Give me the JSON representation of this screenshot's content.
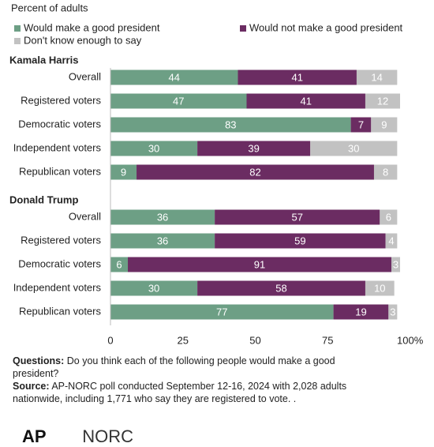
{
  "chart_data": [
    {
      "type": "bar",
      "orientation": "horizontal",
      "stacked": true,
      "subtitle": "Percent of adults",
      "title": "Kamala Harris",
      "categories": [
        "Overall",
        "Registered voters",
        "Democratic voters",
        "Independent voters",
        "Republican voters"
      ],
      "series": [
        {
          "name": "Would make a good president",
          "color": "#6d9f85",
          "values": [
            44,
            47,
            83,
            30,
            9
          ]
        },
        {
          "name": "Would not make a good president",
          "color": "#6b2c62",
          "values": [
            41,
            41,
            7,
            39,
            82
          ]
        },
        {
          "name": "Don't know enough to say",
          "color": "#c2c2c2",
          "values": [
            14,
            12,
            9,
            30,
            8
          ]
        }
      ],
      "xlim": [
        0,
        100
      ]
    },
    {
      "type": "bar",
      "orientation": "horizontal",
      "stacked": true,
      "title": "Donald Trump",
      "categories": [
        "Overall",
        "Registered voters",
        "Democratic voters",
        "Independent voters",
        "Republican voters"
      ],
      "series": [
        {
          "name": "Would make a good president",
          "color": "#6d9f85",
          "values": [
            36,
            36,
            6,
            30,
            77
          ]
        },
        {
          "name": "Would not make a good president",
          "color": "#6b2c62",
          "values": [
            57,
            59,
            91,
            58,
            19
          ]
        },
        {
          "name": "Don't know enough to say",
          "color": "#c2c2c2",
          "values": [
            6,
            4,
            3,
            10,
            3
          ]
        }
      ],
      "xlim": [
        0,
        100
      ],
      "xticks": [
        0,
        25,
        50,
        75,
        {
          "value": 100,
          "label": "100%"
        }
      ]
    }
  ],
  "notes": {
    "questions_label": "Questions:",
    "questions": "Do you think each of the following people would make a good president?",
    "source_label": "Source:",
    "source": "AP-NORC poll conducted September 12-16, 2024 with 2,028 adults nationwide, including 1,771 who say they are registered to vote. .",
    "logos": [
      "AP",
      "NORC"
    ]
  }
}
